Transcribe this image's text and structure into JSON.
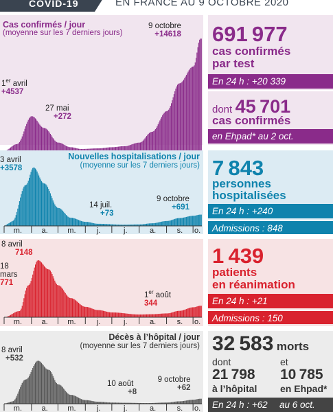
{
  "header": {
    "label": "COVID-19",
    "subtitle": "EN FRANCE AU 9 OCTOBRE 2020"
  },
  "colors": {
    "cases": "#8a2b8a",
    "cases_bg": "#f1e5ef",
    "hosp": "#0f83ad",
    "hosp_bg": "#dcebf3",
    "icu": "#d9222e",
    "icu_bg": "#f7e3e4",
    "deaths": "#555555",
    "deaths_bg": "#ececec"
  },
  "months": [
    "m.",
    "a.",
    "m.",
    "j.",
    "j.",
    "a.",
    "s.",
    "o."
  ],
  "panels": {
    "cases": {
      "title": "Cas confirmés / jour",
      "subtitle": "(moyenne sur les 7 derniers jours)",
      "ann1_line1": "1",
      "ann1_sup": "er",
      "ann1_line1b": " avril",
      "ann1_value": "+4537",
      "ann2_date": "27 mai",
      "ann2_value": "+272",
      "ann3_date": "9 octobre",
      "ann3_value": "+14618"
    },
    "hosp": {
      "title": "Nouvelles hospitalisations / jour",
      "subtitle": "(moyenne sur les 7 derniers jours)",
      "ann1_date": "3 avril",
      "ann1_value": "+3578",
      "ann2_date": "14 juil.",
      "ann2_value": "+73",
      "ann3_date": "9 octobre",
      "ann3_value": "+691"
    },
    "icu": {
      "ann1_date": "8 avril",
      "ann1_value": "7148",
      "ann2_date_a": "18",
      "ann2_date_b": "mars",
      "ann2_value": "771",
      "ann3_date_a": "1",
      "ann3_sup": "er",
      "ann3_date_b": " août",
      "ann3_value": "344"
    },
    "deaths": {
      "title": "Décès à l’hôpital / jour",
      "subtitle": "(moyenne sur les 7 derniers jours)",
      "ann1_date": "8 avril",
      "ann1_value": "+532",
      "ann2_date": "10 août",
      "ann2_value": "+8",
      "ann3_date": "9 octobre",
      "ann3_value": "+62"
    }
  },
  "stats": {
    "cases": {
      "number": "691977",
      "text1": "cas confirmés",
      "text2": "par test",
      "day": "En 24 h : +20 339",
      "dont": "dont",
      "ehpad_number": "45701",
      "ehpad_text1": "cas confirmés",
      "ehpad_bar": "en Ehpad* au 2 oct."
    },
    "hosp": {
      "number": "7843",
      "text1": "personnes",
      "text2": "hospitalisées",
      "day": "En 24 h : +240",
      "admissions": "Admissions : 848"
    },
    "icu": {
      "number": "1439",
      "text1": "patients",
      "text2": "en réanimation",
      "day": "En 24 h : +21",
      "admissions": "Admissions : 150"
    },
    "deaths": {
      "number": "32583",
      "unit": "morts",
      "dont": "dont",
      "et": "et",
      "hosp_number": "21798",
      "hosp_text": "à l’hôpital",
      "ehpad_number": "10785",
      "ehpad_text": "en Ehpad*",
      "day": "En 24 h : +62",
      "date": "au 6 oct."
    }
  },
  "chart_data": [
    {
      "type": "bar",
      "title": "Cas confirmés / jour",
      "subtitle": "(moyenne sur les 7 derniers jours)",
      "x": [
        "2020-03-01",
        "2020-03-15",
        "2020-04-01",
        "2020-04-15",
        "2020-05-01",
        "2020-05-15",
        "2020-05-27",
        "2020-06-15",
        "2020-07-01",
        "2020-07-15",
        "2020-08-01",
        "2020-08-15",
        "2020-09-01",
        "2020-09-15",
        "2020-10-01",
        "2020-10-09"
      ],
      "values": [
        50,
        900,
        4537,
        3000,
        1100,
        500,
        272,
        350,
        500,
        650,
        1100,
        2500,
        5200,
        8800,
        11000,
        14618
      ],
      "ylim": [
        0,
        15000
      ]
    },
    {
      "type": "bar",
      "title": "Nouvelles hospitalisations / jour",
      "subtitle": "(moyenne sur les 7 derniers jours)",
      "x": [
        "2020-03-10",
        "2020-03-25",
        "2020-04-03",
        "2020-04-15",
        "2020-05-01",
        "2020-05-15",
        "2020-06-01",
        "2020-06-15",
        "2020-07-14",
        "2020-08-01",
        "2020-08-15",
        "2020-09-01",
        "2020-09-15",
        "2020-10-01",
        "2020-10-09"
      ],
      "values": [
        300,
        2500,
        3578,
        2600,
        1100,
        500,
        250,
        130,
        73,
        90,
        160,
        300,
        480,
        620,
        691
      ],
      "ylim": [
        0,
        3700
      ]
    },
    {
      "type": "bar",
      "x": [
        "2020-03-01",
        "2020-03-18",
        "2020-03-28",
        "2020-04-08",
        "2020-04-20",
        "2020-05-01",
        "2020-05-15",
        "2020-06-01",
        "2020-06-15",
        "2020-07-01",
        "2020-08-01",
        "2020-08-15",
        "2020-09-01",
        "2020-09-15",
        "2020-10-01",
        "2020-10-09"
      ],
      "values": [
        20,
        771,
        4000,
        7148,
        6000,
        4000,
        2400,
        1300,
        900,
        600,
        344,
        380,
        480,
        800,
        1250,
        1439
      ],
      "ylim": [
        0,
        7400
      ]
    },
    {
      "type": "bar",
      "title": "Décès à l’hôpital / jour",
      "subtitle": "(moyenne sur les 7 derniers jours)",
      "x": [
        "2020-03-10",
        "2020-03-25",
        "2020-04-08",
        "2020-04-20",
        "2020-05-01",
        "2020-05-15",
        "2020-06-01",
        "2020-06-15",
        "2020-07-01",
        "2020-07-15",
        "2020-08-10",
        "2020-09-01",
        "2020-09-15",
        "2020-10-01",
        "2020-10-09"
      ],
      "values": [
        30,
        300,
        532,
        420,
        240,
        110,
        45,
        25,
        15,
        12,
        8,
        15,
        30,
        50,
        62
      ],
      "ylim": [
        0,
        560
      ]
    }
  ]
}
